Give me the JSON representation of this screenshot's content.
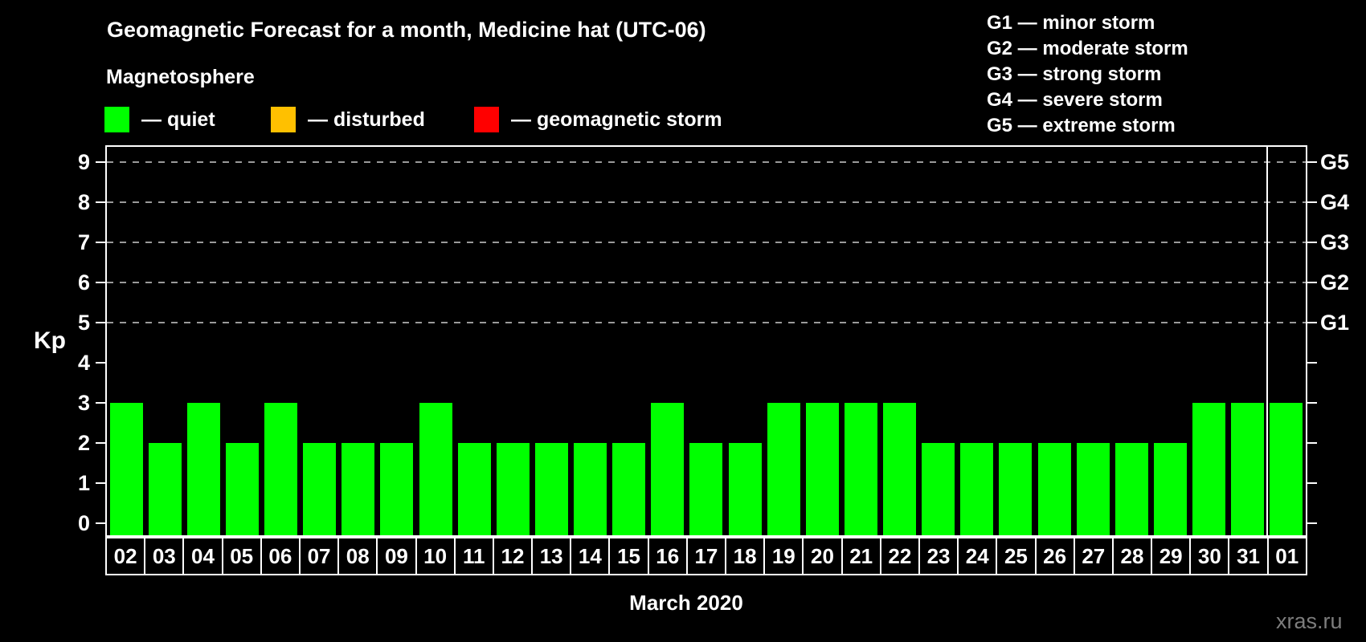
{
  "header": {
    "title": "Geomagnetic Forecast for a month, Medicine hat (UTC-06)"
  },
  "legend": {
    "title": "Magnetosphere",
    "items": [
      {
        "name": "quiet",
        "label": "— quiet",
        "color": "#00ff00"
      },
      {
        "name": "disturbed",
        "label": "— disturbed",
        "color": "#ffc000"
      },
      {
        "name": "geomagnetic-storm",
        "label": "— geomagnetic storm",
        "color": "#ff0000"
      }
    ]
  },
  "g_legend": [
    "G1 — minor storm",
    "G2 — moderate storm",
    "G3 — strong storm",
    "G4 — severe storm",
    "G5 — extreme storm"
  ],
  "watermark": "xras.ru",
  "chart_data": {
    "type": "bar",
    "title": "Geomagnetic Forecast for a month, Medicine hat (UTC-06)",
    "subtitle": "Magnetosphere",
    "categories": [
      "02",
      "03",
      "04",
      "05",
      "06",
      "07",
      "08",
      "09",
      "10",
      "11",
      "12",
      "13",
      "14",
      "15",
      "16",
      "17",
      "18",
      "19",
      "20",
      "21",
      "22",
      "23",
      "24",
      "25",
      "26",
      "27",
      "28",
      "29",
      "30",
      "31",
      "01"
    ],
    "values": [
      3,
      2,
      3,
      2,
      3,
      2,
      2,
      2,
      3,
      2,
      2,
      2,
      2,
      2,
      3,
      2,
      2,
      3,
      3,
      3,
      3,
      2,
      2,
      2,
      2,
      2,
      2,
      2,
      3,
      3,
      3
    ],
    "bar_color": "#00ff00",
    "ylabel": "Kp",
    "xlabel": "March 2020",
    "ylim": [
      0,
      9
    ],
    "yticks": [
      0,
      1,
      2,
      3,
      4,
      5,
      6,
      7,
      8,
      9
    ],
    "grid_levels": [
      5,
      6,
      7,
      8,
      9
    ],
    "right_axis_labels": [
      {
        "label": "G1",
        "kp": 5
      },
      {
        "label": "G2",
        "kp": 6
      },
      {
        "label": "G3",
        "kp": 7
      },
      {
        "label": "G4",
        "kp": 8
      },
      {
        "label": "G5",
        "kp": 9
      }
    ],
    "grid": "dashed horizontal lines at storm levels only",
    "legend_position": "top-left",
    "month_separator_before_category": "01"
  }
}
